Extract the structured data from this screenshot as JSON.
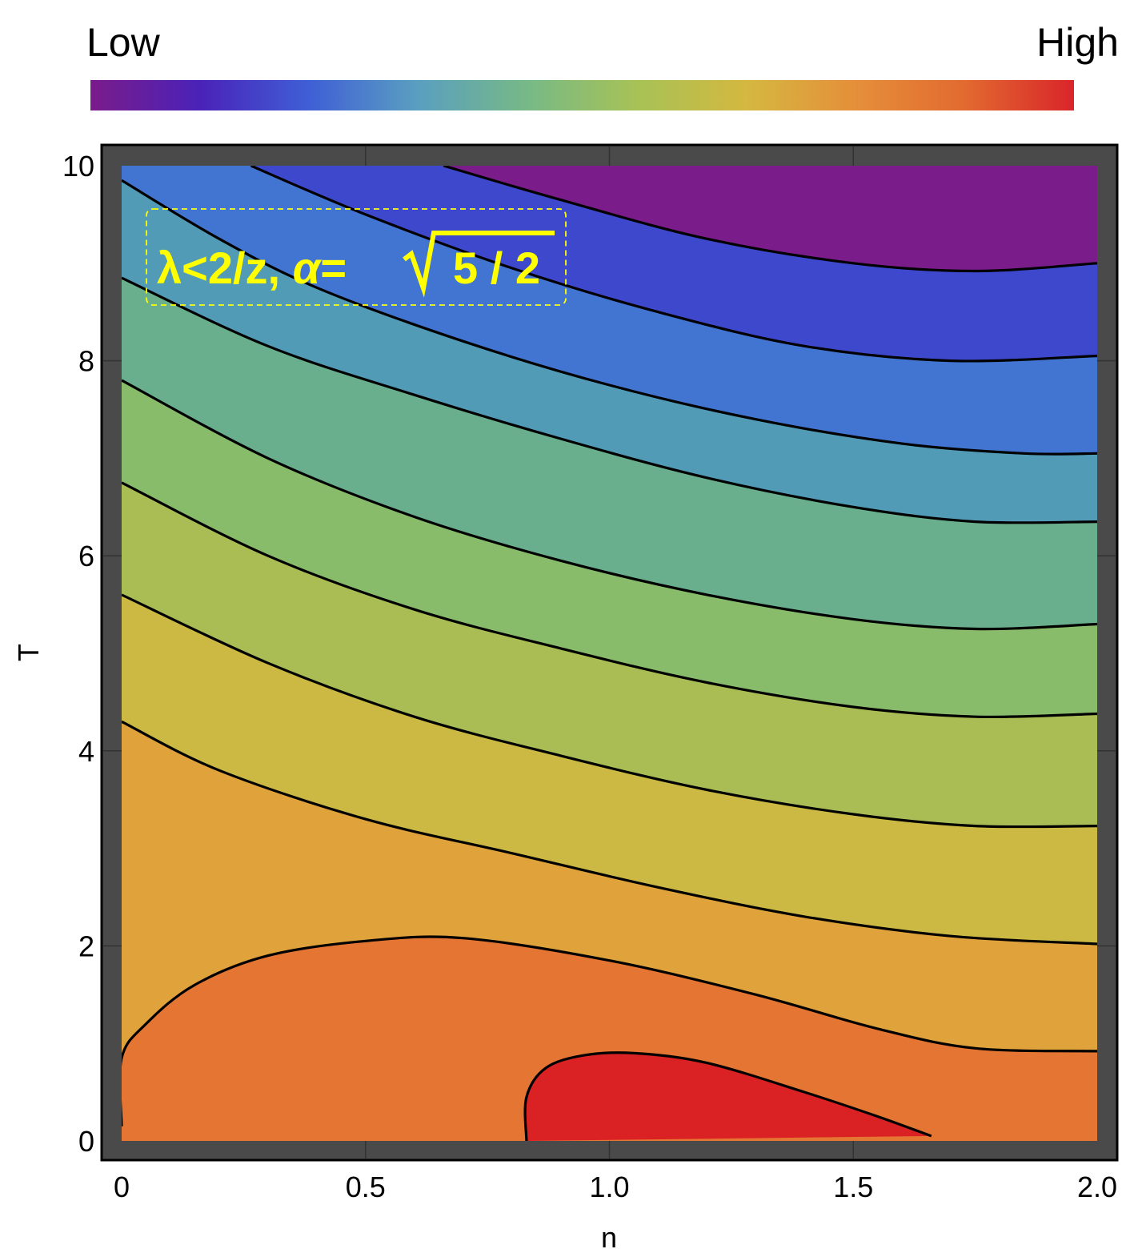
{
  "colorbar": {
    "low_label": "Low",
    "high_label": "High",
    "stops": [
      "#7a1c8a",
      "#4a22b8",
      "#3f5fd6",
      "#5a9fc0",
      "#77b986",
      "#a7c256",
      "#d4b840",
      "#e58f3a",
      "#e26a30",
      "#d9252a"
    ]
  },
  "annotation": {
    "prefix": "λ<2/z, ",
    "alpha": "α",
    "eq": "=",
    "radicand": "5 / 2",
    "color": "#ffff00"
  },
  "frame_color": "#4a4a4a",
  "chart_data": {
    "type": "heatmap",
    "subtype": "contour",
    "xlabel": "n",
    "ylabel": "T",
    "xlim": [
      0,
      2.0
    ],
    "ylim": [
      0,
      10
    ],
    "xticks": [
      0,
      0.5,
      1.0,
      1.5,
      2.0
    ],
    "xtick_labels": [
      "0",
      "0.5",
      "1.0",
      "1.5",
      "2.0"
    ],
    "yticks": [
      0,
      2,
      4,
      6,
      8,
      10
    ],
    "ytick_labels": [
      "0",
      "2",
      "4",
      "6",
      "8",
      "10"
    ],
    "grid": true,
    "regions": [
      {
        "name": "band-0",
        "color": "#7a1c8a"
      },
      {
        "name": "band-1",
        "color": "#3e48cc"
      },
      {
        "name": "band-2",
        "color": "#4275d2"
      },
      {
        "name": "band-3",
        "color": "#519bb6"
      },
      {
        "name": "band-4",
        "color": "#6aaf8d"
      },
      {
        "name": "band-5",
        "color": "#88bc6a"
      },
      {
        "name": "band-6",
        "color": "#aabd55"
      },
      {
        "name": "band-7",
        "color": "#cbb943"
      },
      {
        "name": "band-8",
        "color": "#e0a23a"
      },
      {
        "name": "band-9",
        "color": "#e57532"
      },
      {
        "name": "band-10",
        "color": "#da2224"
      }
    ],
    "contours": [
      {
        "name": "contour-1",
        "points": [
          [
            0.66,
            10.0
          ],
          [
            0.9,
            9.65
          ],
          [
            1.2,
            9.25
          ],
          [
            1.5,
            9.0
          ],
          [
            1.75,
            8.92
          ],
          [
            2.0,
            9.0
          ]
        ]
      },
      {
        "name": "contour-2",
        "points": [
          [
            0.265,
            10.0
          ],
          [
            0.5,
            9.5
          ],
          [
            0.8,
            8.95
          ],
          [
            1.1,
            8.5
          ],
          [
            1.4,
            8.15
          ],
          [
            1.7,
            8.0
          ],
          [
            2.0,
            8.05
          ]
        ]
      },
      {
        "name": "contour-3",
        "points": [
          [
            0.0,
            9.85
          ],
          [
            0.2,
            9.25
          ],
          [
            0.4,
            8.75
          ],
          [
            0.7,
            8.2
          ],
          [
            1.0,
            7.75
          ],
          [
            1.3,
            7.4
          ],
          [
            1.6,
            7.15
          ],
          [
            1.85,
            7.05
          ],
          [
            2.0,
            7.05
          ]
        ]
      },
      {
        "name": "contour-4",
        "points": [
          [
            0.0,
            8.85
          ],
          [
            0.3,
            8.15
          ],
          [
            0.6,
            7.65
          ],
          [
            0.9,
            7.2
          ],
          [
            1.2,
            6.8
          ],
          [
            1.5,
            6.5
          ],
          [
            1.75,
            6.35
          ],
          [
            2.0,
            6.35
          ]
        ]
      },
      {
        "name": "contour-5",
        "points": [
          [
            0.0,
            7.8
          ],
          [
            0.3,
            7.0
          ],
          [
            0.6,
            6.4
          ],
          [
            0.9,
            5.95
          ],
          [
            1.2,
            5.6
          ],
          [
            1.5,
            5.35
          ],
          [
            1.75,
            5.25
          ],
          [
            2.0,
            5.3
          ]
        ]
      },
      {
        "name": "contour-6",
        "points": [
          [
            0.0,
            6.75
          ],
          [
            0.3,
            6.0
          ],
          [
            0.6,
            5.45
          ],
          [
            0.9,
            5.05
          ],
          [
            1.2,
            4.7
          ],
          [
            1.5,
            4.45
          ],
          [
            1.75,
            4.35
          ],
          [
            2.0,
            4.38
          ]
        ]
      },
      {
        "name": "contour-7",
        "points": [
          [
            0.0,
            5.6
          ],
          [
            0.3,
            4.9
          ],
          [
            0.6,
            4.35
          ],
          [
            0.9,
            3.95
          ],
          [
            1.2,
            3.6
          ],
          [
            1.5,
            3.35
          ],
          [
            1.75,
            3.23
          ],
          [
            2.0,
            3.23
          ]
        ]
      },
      {
        "name": "contour-8",
        "points": [
          [
            0.0,
            4.3
          ],
          [
            0.2,
            3.8
          ],
          [
            0.5,
            3.3
          ],
          [
            0.8,
            2.95
          ],
          [
            1.1,
            2.6
          ],
          [
            1.4,
            2.3
          ],
          [
            1.7,
            2.1
          ],
          [
            2.0,
            2.02
          ]
        ]
      },
      {
        "name": "contour-9",
        "points": [
          [
            0.0,
            0.15
          ],
          [
            0.0,
            0.85
          ],
          [
            0.05,
            1.2
          ],
          [
            0.15,
            1.6
          ],
          [
            0.3,
            1.9
          ],
          [
            0.5,
            2.05
          ],
          [
            0.7,
            2.08
          ],
          [
            1.0,
            1.85
          ],
          [
            1.3,
            1.5
          ],
          [
            1.55,
            1.15
          ],
          [
            1.75,
            0.95
          ],
          [
            2.0,
            0.92
          ]
        ]
      },
      {
        "name": "contour-10",
        "points": [
          [
            0.83,
            0.0
          ],
          [
            0.83,
            0.45
          ],
          [
            0.87,
            0.75
          ],
          [
            0.95,
            0.88
          ],
          [
            1.05,
            0.9
          ],
          [
            1.2,
            0.8
          ],
          [
            1.4,
            0.5
          ],
          [
            1.55,
            0.25
          ],
          [
            1.66,
            0.05
          ]
        ]
      }
    ]
  }
}
